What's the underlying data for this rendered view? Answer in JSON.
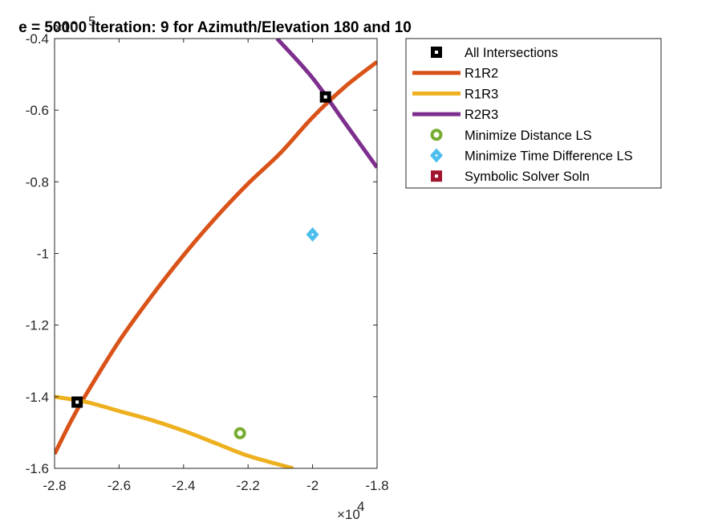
{
  "chart_data": {
    "type": "scatter",
    "title": "e = 50000 Iteration: 9 for Azimuth/Elevation 180 and 10",
    "xlabel": "",
    "ylabel": "",
    "x_multiplier": {
      "base": "×10",
      "exponent": "4"
    },
    "y_multiplier": {
      "base": "×10",
      "exponent": "5"
    },
    "xlim": [
      -2.8,
      -1.8
    ],
    "ylim": [
      -1.6,
      -0.4
    ],
    "xticks": [
      -2.8,
      -2.6,
      -2.4,
      -2.2,
      -2.0,
      -1.8
    ],
    "xtick_labels": [
      "-2.8",
      "-2.6",
      "-2.4",
      "-2.2",
      "-2",
      "-1.8"
    ],
    "yticks": [
      -1.6,
      -1.4,
      -1.2,
      -1.0,
      -0.8,
      -0.6,
      -0.4
    ],
    "ytick_labels": [
      "-1.6",
      "-1.4",
      "-1.2",
      "-1",
      "-0.8",
      "-0.6",
      "-0.4"
    ],
    "grid": false,
    "legend_position": "outside-right-top",
    "series": [
      {
        "name": "All Intersections",
        "kind": "marker",
        "marker": "square-dot",
        "color": "#000000",
        "points": [
          [
            -2.73,
            -1.415
          ],
          [
            -1.96,
            -0.563
          ]
        ]
      },
      {
        "name": "R1R2",
        "kind": "line",
        "color": "#D95319",
        "points": [
          [
            -2.8,
            -1.56
          ],
          [
            -2.75,
            -1.47
          ],
          [
            -2.7,
            -1.39
          ],
          [
            -2.6,
            -1.245
          ],
          [
            -2.5,
            -1.12
          ],
          [
            -2.4,
            -1.005
          ],
          [
            -2.3,
            -0.9
          ],
          [
            -2.2,
            -0.805
          ],
          [
            -2.1,
            -0.72
          ],
          [
            -2.0,
            -0.62
          ],
          [
            -1.9,
            -0.535
          ],
          [
            -1.8,
            -0.465
          ]
        ]
      },
      {
        "name": "R1R3",
        "kind": "line",
        "color": "#EDB120",
        "points": [
          [
            -2.8,
            -1.4
          ],
          [
            -2.7,
            -1.415
          ],
          [
            -2.6,
            -1.44
          ],
          [
            -2.5,
            -1.465
          ],
          [
            -2.4,
            -1.495
          ],
          [
            -2.3,
            -1.53
          ],
          [
            -2.2,
            -1.565
          ],
          [
            -2.06,
            -1.6
          ]
        ]
      },
      {
        "name": "R2R3",
        "kind": "line",
        "color": "#7E2F8E",
        "points": [
          [
            -2.11,
            -0.4
          ],
          [
            -2.0,
            -0.51
          ],
          [
            -1.9,
            -0.635
          ],
          [
            -1.8,
            -0.76
          ]
        ]
      },
      {
        "name": "Minimize Distance LS",
        "kind": "marker",
        "marker": "circle-dot",
        "color": "#77AC30",
        "points": [
          [
            -2.225,
            -1.502
          ]
        ]
      },
      {
        "name": "Minimize Time Difference LS",
        "kind": "marker",
        "marker": "diamond-dot",
        "color": "#4DBEEE",
        "points": [
          [
            -2.0,
            -0.947
          ]
        ]
      },
      {
        "name": "Symbolic Solver Soln",
        "kind": "marker",
        "marker": "square-dot",
        "color": "#A2142F",
        "points": []
      }
    ]
  }
}
